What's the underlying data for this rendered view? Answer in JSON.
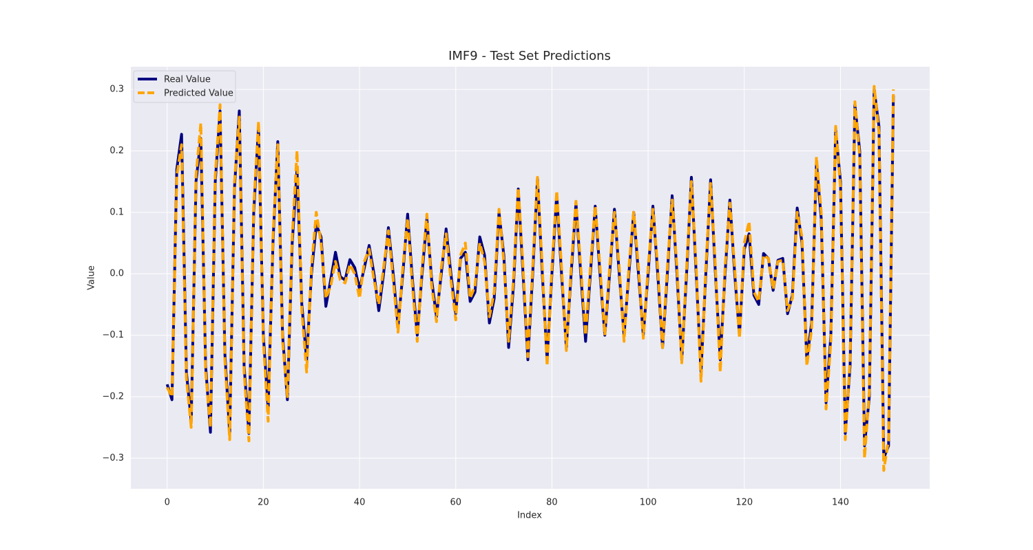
{
  "chart_data": {
    "type": "line",
    "title": "IMF9 - Test Set Predictions",
    "x_label": "Index",
    "y_label": "Value",
    "x": [
      0,
      1,
      2,
      3,
      4,
      5,
      6,
      7,
      8,
      9,
      10,
      11,
      12,
      13,
      14,
      15,
      16,
      17,
      18,
      19,
      20,
      21,
      22,
      23,
      24,
      25,
      26,
      27,
      28,
      29,
      30,
      31,
      32,
      33,
      34,
      35,
      36,
      37,
      38,
      39,
      40,
      41,
      42,
      43,
      44,
      45,
      46,
      47,
      48,
      49,
      50,
      51,
      52,
      53,
      54,
      55,
      56,
      57,
      58,
      59,
      60,
      61,
      62,
      63,
      64,
      65,
      66,
      67,
      68,
      69,
      70,
      71,
      72,
      73,
      74,
      75,
      76,
      77,
      78,
      79,
      80,
      81,
      82,
      83,
      84,
      85,
      86,
      87,
      88,
      89,
      90,
      91,
      92,
      93,
      94,
      95,
      96,
      97,
      98,
      99,
      100,
      101,
      102,
      103,
      104,
      105,
      106,
      107,
      108,
      109,
      110,
      111,
      112,
      113,
      114,
      115,
      116,
      117,
      118,
      119,
      120,
      121,
      122,
      123,
      124,
      125,
      126,
      127,
      128,
      129,
      130,
      131,
      132,
      133,
      134,
      135,
      136,
      137,
      138,
      139,
      140,
      141,
      142,
      143,
      144,
      145,
      146,
      147,
      148,
      149,
      150,
      151
    ],
    "series": [
      {
        "name": "Real Value",
        "color": "#000080",
        "dashed": false,
        "values": [
          -0.18,
          -0.205,
          0.17,
          0.227,
          -0.16,
          -0.24,
          0.15,
          0.22,
          -0.15,
          -0.258,
          0.15,
          0.265,
          -0.13,
          -0.26,
          0.14,
          0.265,
          -0.15,
          -0.26,
          0.1,
          0.24,
          -0.1,
          -0.22,
          0.05,
          0.215,
          -0.1,
          -0.205,
          0.05,
          0.17,
          -0.05,
          -0.14,
          0.0,
          0.08,
          0.06,
          -0.053,
          -0.01,
          0.035,
          -0.005,
          -0.01,
          0.023,
          0.01,
          -0.025,
          0.01,
          0.046,
          0.0,
          -0.06,
          0.0,
          0.075,
          0.0,
          -0.085,
          0.0,
          0.097,
          -0.01,
          -0.1,
          0.0,
          0.09,
          -0.01,
          -0.07,
          0.0,
          0.073,
          0.0,
          -0.065,
          0.025,
          0.035,
          -0.045,
          -0.03,
          0.06,
          0.03,
          -0.08,
          -0.04,
          0.1,
          0.03,
          -0.12,
          -0.02,
          0.138,
          0.0,
          -0.14,
          0.0,
          0.155,
          0.0,
          -0.14,
          0.0,
          0.13,
          0.0,
          -0.12,
          0.0,
          0.115,
          0.0,
          -0.11,
          0.0,
          0.11,
          0.0,
          -0.1,
          0.0,
          0.105,
          0.0,
          -0.1,
          0.0,
          0.1,
          0.0,
          -0.1,
          0.0,
          0.11,
          0.0,
          -0.12,
          0.0,
          0.127,
          0.0,
          -0.14,
          0.0,
          0.157,
          0.0,
          -0.16,
          0.0,
          0.153,
          0.0,
          -0.14,
          0.0,
          0.12,
          0.0,
          -0.1,
          0.04,
          0.065,
          -0.035,
          -0.05,
          0.033,
          0.025,
          -0.027,
          0.022,
          0.025,
          -0.065,
          -0.035,
          0.107,
          0.05,
          -0.14,
          -0.08,
          0.18,
          0.09,
          -0.21,
          -0.1,
          0.235,
          0.15,
          -0.26,
          -0.15,
          0.275,
          0.2,
          -0.28,
          -0.2,
          0.3,
          0.24,
          -0.3,
          -0.28,
          0.29
        ]
      },
      {
        "name": "Predicted Value",
        "color": "#ffa500",
        "dashed": true,
        "values": [
          -0.185,
          -0.2,
          0.16,
          0.21,
          -0.17,
          -0.25,
          0.16,
          0.245,
          -0.16,
          -0.25,
          0.16,
          0.275,
          -0.14,
          -0.27,
          0.15,
          0.255,
          -0.16,
          -0.272,
          0.11,
          0.248,
          -0.11,
          -0.24,
          0.06,
          0.21,
          -0.11,
          -0.2,
          0.06,
          0.2,
          -0.06,
          -0.16,
          0.01,
          0.1,
          0.05,
          -0.04,
          -0.02,
          0.02,
          -0.01,
          -0.015,
          0.015,
          0.0,
          -0.04,
          0.02,
          0.04,
          -0.01,
          -0.05,
          0.01,
          0.07,
          -0.01,
          -0.095,
          0.01,
          0.09,
          -0.02,
          -0.11,
          0.01,
          0.097,
          -0.02,
          -0.078,
          0.01,
          0.065,
          -0.01,
          -0.075,
          0.03,
          0.05,
          -0.04,
          -0.02,
          0.05,
          0.02,
          -0.07,
          -0.03,
          0.105,
          0.02,
          -0.11,
          -0.01,
          0.14,
          0.01,
          -0.135,
          0.01,
          0.157,
          0.01,
          -0.15,
          0.01,
          0.135,
          0.01,
          -0.125,
          0.01,
          0.118,
          0.01,
          -0.1,
          0.01,
          0.11,
          0.01,
          -0.1,
          0.01,
          0.1,
          0.01,
          -0.11,
          0.01,
          0.1,
          0.01,
          -0.105,
          0.01,
          0.105,
          0.01,
          -0.12,
          0.01,
          0.12,
          0.01,
          -0.145,
          0.01,
          0.15,
          0.01,
          -0.175,
          0.01,
          0.147,
          0.01,
          -0.16,
          0.01,
          0.115,
          0.01,
          -0.105,
          0.05,
          0.085,
          -0.03,
          -0.045,
          0.03,
          0.025,
          -0.025,
          0.02,
          0.022,
          -0.06,
          -0.04,
          0.1,
          0.06,
          -0.15,
          -0.09,
          0.19,
          0.1,
          -0.22,
          -0.11,
          0.24,
          0.14,
          -0.27,
          -0.14,
          0.28,
          0.19,
          -0.3,
          -0.19,
          0.305,
          0.23,
          -0.32,
          -0.27,
          0.3
        ]
      }
    ],
    "xlim": [
      -7.55,
      158.55
    ],
    "ylim": [
      -0.35,
      0.337
    ],
    "xticks": [
      0,
      20,
      40,
      60,
      80,
      100,
      120,
      140
    ],
    "yticks": [
      {
        "value": -0.3,
        "label": "−0.3"
      },
      {
        "value": -0.2,
        "label": "−0.2"
      },
      {
        "value": -0.1,
        "label": "−0.1"
      },
      {
        "value": 0,
        "label": "0.0"
      },
      0.1,
      0.2,
      0.3
    ],
    "grid": true,
    "legend": "upper left"
  }
}
